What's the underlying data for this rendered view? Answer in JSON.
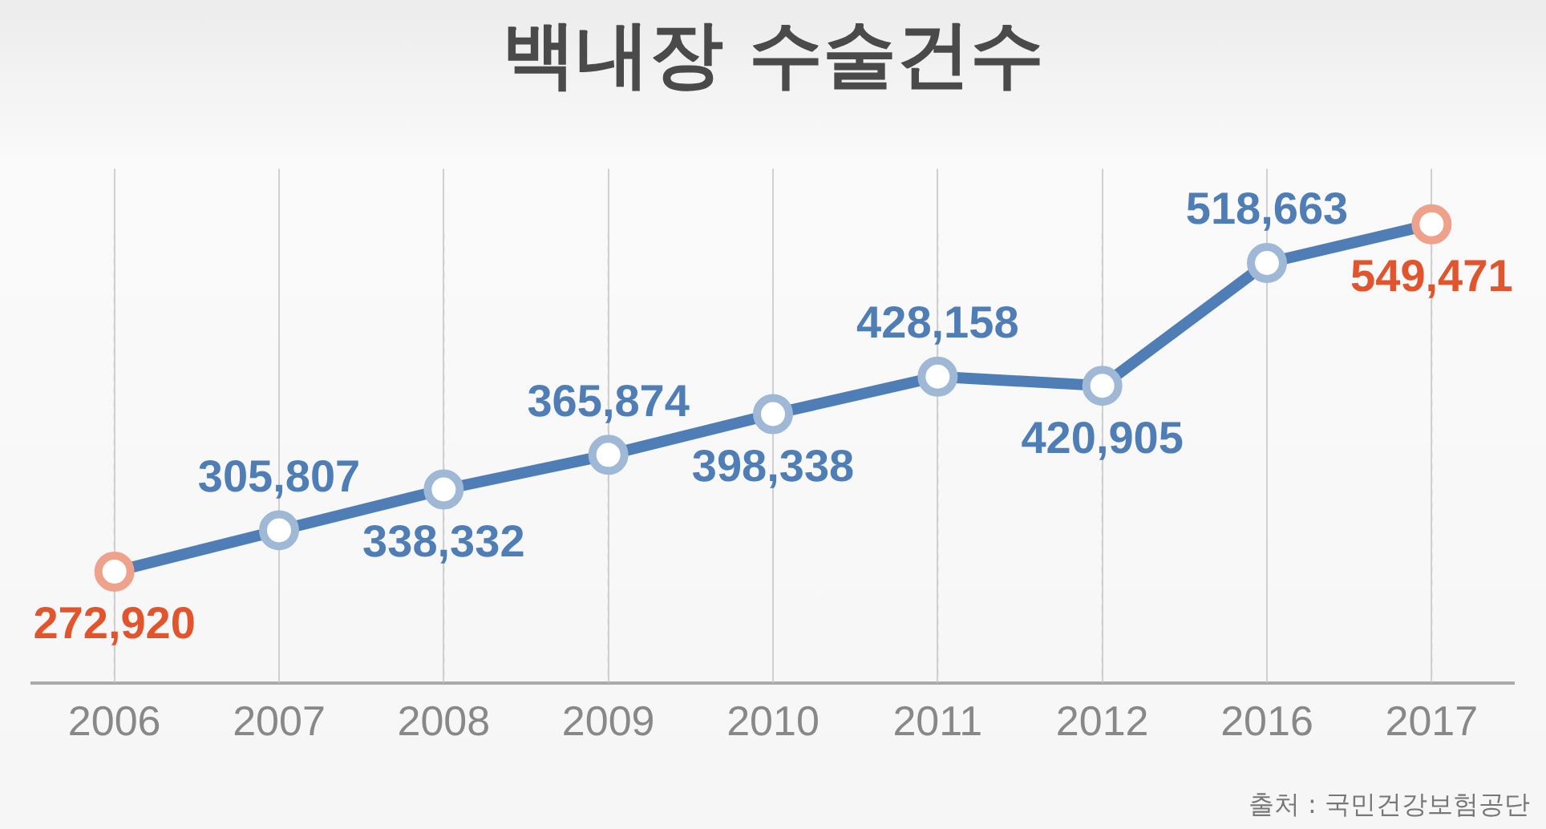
{
  "chart_data": {
    "type": "line",
    "title": "백내장 수술건수",
    "categories": [
      "2006",
      "2007",
      "2008",
      "2009",
      "2010",
      "2011",
      "2012",
      "2016",
      "2017"
    ],
    "values": [
      272920,
      305807,
      338332,
      365874,
      398338,
      428158,
      420905,
      518663,
      549471
    ],
    "color": "#4f7db5",
    "colors": [
      "#e0552e",
      "#4f7db5",
      "#4f7db5",
      "#4f7db5",
      "#4f7db5",
      "#4f7db5",
      "#4f7db5",
      "#4f7db5",
      "#e0552e"
    ],
    "value_labels": [
      "272,920",
      "305,807",
      "338,332",
      "365,874",
      "398,338",
      "428,158",
      "420,905",
      "518,663",
      "549,471"
    ],
    "marker": "circle",
    "grid": "x",
    "annotations": [
      "출처 : 국민건강보험공단"
    ]
  }
}
